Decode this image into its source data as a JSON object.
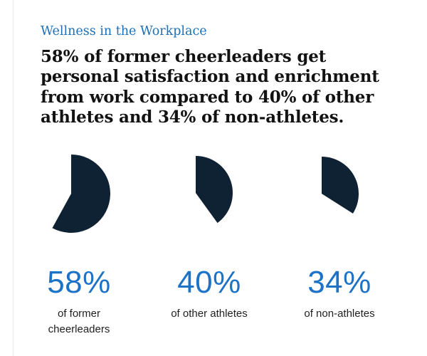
{
  "page": {
    "eyebrow": "Wellness in the Workplace",
    "headline": "58% of former cheerleaders get personal satisfaction and enrichment from work compared to 40% of other athletes and 34% of non-athletes."
  },
  "stats": [
    {
      "percent": "58%",
      "value": 58,
      "caption": "of former cheerleaders"
    },
    {
      "percent": "40%",
      "value": 40,
      "caption": "of other athletes"
    },
    {
      "percent": "34%",
      "value": 34,
      "caption": "of non-athletes"
    }
  ],
  "colors": {
    "accent_title": "#1d70b8",
    "accent_number": "#1c72c6",
    "pie_navy": "#0e2233",
    "headline_text": "#121212",
    "caption_text": "#1f1f1f",
    "divider": "#ececec",
    "background": "#ffffff"
  },
  "chart_data": {
    "type": "pie",
    "title": "Wellness in the Workplace",
    "subtitle": "58% of former cheerleaders get personal satisfaction and enrichment from work compared to 40% of other athletes and 34% of non-athletes.",
    "unit": "%",
    "start_angle_deg": 0,
    "direction": "clockwise",
    "legend_position": "below-each-pie",
    "series": [
      {
        "name": "of former cheerleaders",
        "value": 58,
        "remainder": 42
      },
      {
        "name": "of other athletes",
        "value": 40,
        "remainder": 60
      },
      {
        "name": "of non-athletes",
        "value": 34,
        "remainder": 66
      }
    ],
    "slice_color": "#0e2233",
    "empty_color": "#ffffff"
  }
}
